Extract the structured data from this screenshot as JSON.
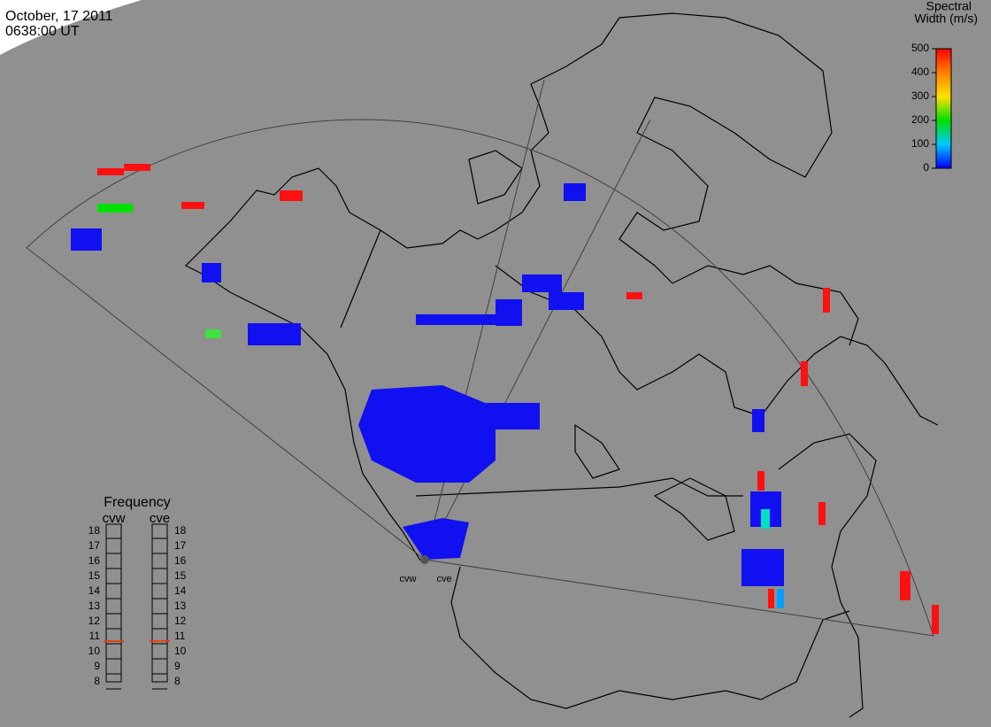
{
  "header": {
    "date": "October, 17 2011",
    "time": "0638:00 UT"
  },
  "colorbar": {
    "title_line1": "Spectral",
    "title_line2": "Width (m/s)",
    "lim": [
      0,
      500
    ],
    "ticks": [
      0,
      100,
      200,
      300,
      400,
      500
    ],
    "colors": [
      "#0000ff",
      "#00c8ff",
      "#00e000",
      "#ffe000",
      "#ff8000",
      "#ff0000"
    ]
  },
  "frequency": {
    "title": "Frequency",
    "lim": [
      8,
      18
    ],
    "ticks": [
      8,
      9,
      10,
      11,
      12,
      13,
      14,
      15,
      16,
      17,
      18
    ],
    "radars": [
      {
        "name": "cvw",
        "value": 10.7
      },
      {
        "name": "cve",
        "value": 10.7
      }
    ]
  }
}
